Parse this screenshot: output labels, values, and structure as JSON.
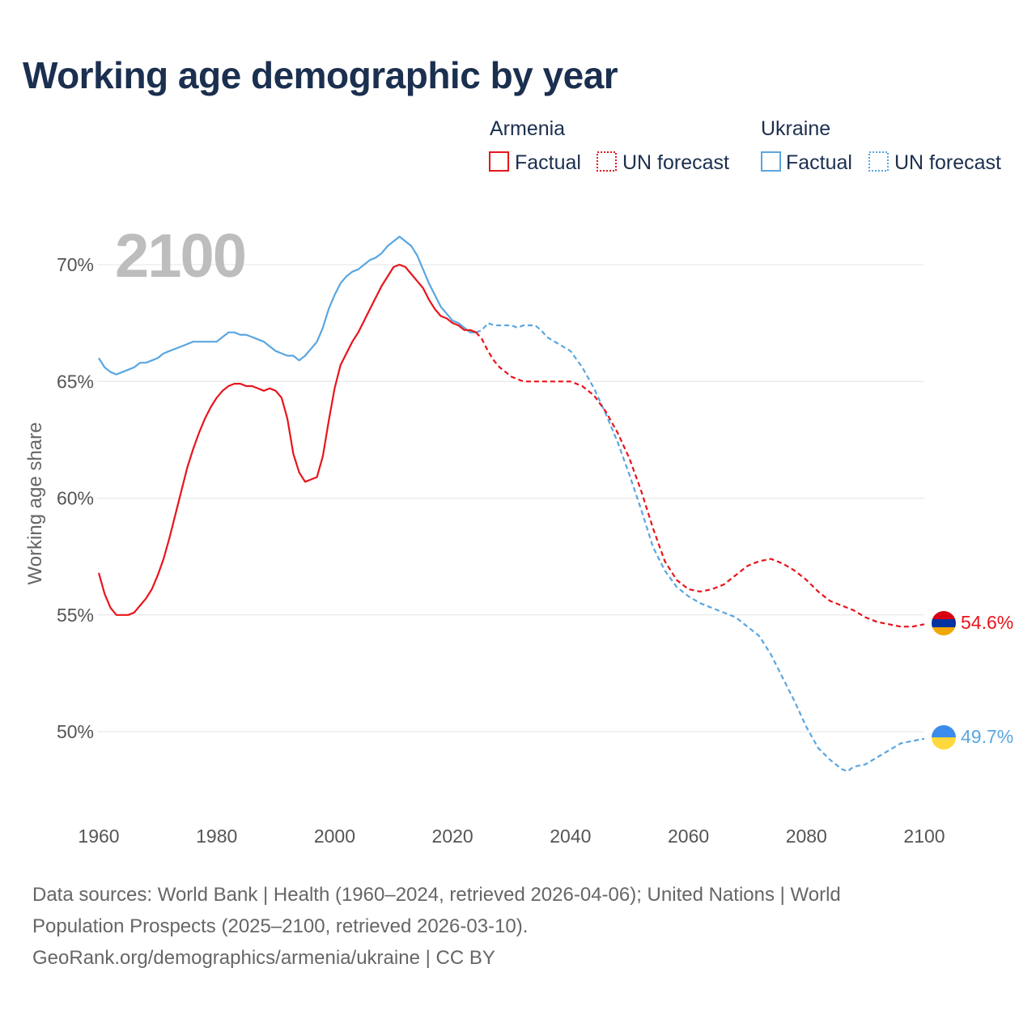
{
  "title": "Working age demographic by year",
  "chart_data": {
    "type": "line",
    "title": "Working age demographic by year",
    "ylabel": "Working age share",
    "xlabel": "",
    "xlim": [
      1960,
      2100
    ],
    "ylim": [
      46.5,
      72
    ],
    "x_ticks": [
      1960,
      1980,
      2000,
      2020,
      2040,
      2060,
      2080,
      2100
    ],
    "y_ticks": [
      50,
      55,
      60,
      65,
      70
    ],
    "y_tick_labels": [
      "50%",
      "55%",
      "60%",
      "65%",
      "70%"
    ],
    "year_label": "2100",
    "legend": {
      "groups": [
        {
          "name": "Armenia",
          "factual_label": "Factual",
          "forecast_label": "UN forecast",
          "color": "#e8141b"
        },
        {
          "name": "Ukraine",
          "factual_label": "Factual",
          "forecast_label": "UN forecast",
          "color": "#5aa6e0"
        }
      ]
    },
    "series": [
      {
        "name": "Armenia",
        "color": "#e8141b",
        "end_label": "54.6%",
        "factual": [
          [
            1960,
            56.8
          ],
          [
            1961,
            55.9
          ],
          [
            1962,
            55.3
          ],
          [
            1963,
            55.0
          ],
          [
            1964,
            55.0
          ],
          [
            1965,
            55.0
          ],
          [
            1966,
            55.1
          ],
          [
            1967,
            55.4
          ],
          [
            1968,
            55.7
          ],
          [
            1969,
            56.1
          ],
          [
            1970,
            56.7
          ],
          [
            1971,
            57.4
          ],
          [
            1972,
            58.3
          ],
          [
            1973,
            59.3
          ],
          [
            1974,
            60.3
          ],
          [
            1975,
            61.3
          ],
          [
            1976,
            62.1
          ],
          [
            1977,
            62.8
          ],
          [
            1978,
            63.4
          ],
          [
            1979,
            63.9
          ],
          [
            1980,
            64.3
          ],
          [
            1981,
            64.6
          ],
          [
            1982,
            64.8
          ],
          [
            1983,
            64.9
          ],
          [
            1984,
            64.9
          ],
          [
            1985,
            64.8
          ],
          [
            1986,
            64.8
          ],
          [
            1987,
            64.7
          ],
          [
            1988,
            64.6
          ],
          [
            1989,
            64.7
          ],
          [
            1990,
            64.6
          ],
          [
            1991,
            64.3
          ],
          [
            1992,
            63.4
          ],
          [
            1993,
            61.9
          ],
          [
            1994,
            61.1
          ],
          [
            1995,
            60.7
          ],
          [
            1996,
            60.8
          ],
          [
            1997,
            60.9
          ],
          [
            1998,
            61.8
          ],
          [
            1999,
            63.3
          ],
          [
            2000,
            64.7
          ],
          [
            2001,
            65.7
          ],
          [
            2002,
            66.2
          ],
          [
            2003,
            66.7
          ],
          [
            2004,
            67.1
          ],
          [
            2005,
            67.6
          ],
          [
            2006,
            68.1
          ],
          [
            2007,
            68.6
          ],
          [
            2008,
            69.1
          ],
          [
            2009,
            69.5
          ],
          [
            2010,
            69.9
          ],
          [
            2011,
            70.0
          ],
          [
            2012,
            69.9
          ],
          [
            2013,
            69.6
          ],
          [
            2014,
            69.3
          ],
          [
            2015,
            69.0
          ],
          [
            2016,
            68.5
          ],
          [
            2017,
            68.1
          ],
          [
            2018,
            67.8
          ],
          [
            2019,
            67.7
          ],
          [
            2020,
            67.5
          ],
          [
            2021,
            67.4
          ],
          [
            2022,
            67.2
          ],
          [
            2023,
            67.2
          ],
          [
            2024,
            67.1
          ]
        ],
        "forecast": [
          [
            2024,
            67.1
          ],
          [
            2025,
            66.8
          ],
          [
            2026,
            66.3
          ],
          [
            2027,
            65.9
          ],
          [
            2028,
            65.6
          ],
          [
            2029,
            65.4
          ],
          [
            2030,
            65.2
          ],
          [
            2032,
            65.0
          ],
          [
            2035,
            65.0
          ],
          [
            2038,
            65.0
          ],
          [
            2040,
            65.0
          ],
          [
            2042,
            64.8
          ],
          [
            2044,
            64.4
          ],
          [
            2046,
            63.7
          ],
          [
            2048,
            62.8
          ],
          [
            2050,
            61.7
          ],
          [
            2052,
            60.3
          ],
          [
            2054,
            58.7
          ],
          [
            2056,
            57.3
          ],
          [
            2058,
            56.5
          ],
          [
            2060,
            56.1
          ],
          [
            2062,
            56.0
          ],
          [
            2064,
            56.1
          ],
          [
            2066,
            56.3
          ],
          [
            2068,
            56.7
          ],
          [
            2070,
            57.1
          ],
          [
            2072,
            57.3
          ],
          [
            2074,
            57.4
          ],
          [
            2076,
            57.2
          ],
          [
            2078,
            56.9
          ],
          [
            2080,
            56.5
          ],
          [
            2082,
            56.0
          ],
          [
            2084,
            55.6
          ],
          [
            2086,
            55.4
          ],
          [
            2088,
            55.2
          ],
          [
            2090,
            54.9
          ],
          [
            2092,
            54.7
          ],
          [
            2094,
            54.6
          ],
          [
            2096,
            54.5
          ],
          [
            2098,
            54.5
          ],
          [
            2100,
            54.6
          ]
        ]
      },
      {
        "name": "Ukraine",
        "color": "#5aa6e0",
        "end_label": "49.7%",
        "factual": [
          [
            1960,
            66.0
          ],
          [
            1961,
            65.6
          ],
          [
            1962,
            65.4
          ],
          [
            1963,
            65.3
          ],
          [
            1964,
            65.4
          ],
          [
            1965,
            65.5
          ],
          [
            1966,
            65.6
          ],
          [
            1967,
            65.8
          ],
          [
            1968,
            65.8
          ],
          [
            1969,
            65.9
          ],
          [
            1970,
            66.0
          ],
          [
            1971,
            66.2
          ],
          [
            1972,
            66.3
          ],
          [
            1973,
            66.4
          ],
          [
            1974,
            66.5
          ],
          [
            1975,
            66.6
          ],
          [
            1976,
            66.7
          ],
          [
            1977,
            66.7
          ],
          [
            1978,
            66.7
          ],
          [
            1979,
            66.7
          ],
          [
            1980,
            66.7
          ],
          [
            1981,
            66.9
          ],
          [
            1982,
            67.1
          ],
          [
            1983,
            67.1
          ],
          [
            1984,
            67.0
          ],
          [
            1985,
            67.0
          ],
          [
            1986,
            66.9
          ],
          [
            1987,
            66.8
          ],
          [
            1988,
            66.7
          ],
          [
            1989,
            66.5
          ],
          [
            1990,
            66.3
          ],
          [
            1991,
            66.2
          ],
          [
            1992,
            66.1
          ],
          [
            1993,
            66.1
          ],
          [
            1994,
            65.9
          ],
          [
            1995,
            66.1
          ],
          [
            1996,
            66.4
          ],
          [
            1997,
            66.7
          ],
          [
            1998,
            67.3
          ],
          [
            1999,
            68.1
          ],
          [
            2000,
            68.7
          ],
          [
            2001,
            69.2
          ],
          [
            2002,
            69.5
          ],
          [
            2003,
            69.7
          ],
          [
            2004,
            69.8
          ],
          [
            2005,
            70.0
          ],
          [
            2006,
            70.2
          ],
          [
            2007,
            70.3
          ],
          [
            2008,
            70.5
          ],
          [
            2009,
            70.8
          ],
          [
            2010,
            71.0
          ],
          [
            2011,
            71.2
          ],
          [
            2012,
            71.0
          ],
          [
            2013,
            70.8
          ],
          [
            2014,
            70.4
          ],
          [
            2015,
            69.8
          ],
          [
            2016,
            69.2
          ],
          [
            2017,
            68.7
          ],
          [
            2018,
            68.2
          ],
          [
            2019,
            67.9
          ],
          [
            2020,
            67.6
          ],
          [
            2021,
            67.5
          ],
          [
            2022,
            67.3
          ],
          [
            2023,
            67.1
          ],
          [
            2024,
            67.1
          ]
        ],
        "forecast": [
          [
            2024,
            67.1
          ],
          [
            2025,
            67.2
          ],
          [
            2026,
            67.5
          ],
          [
            2027,
            67.4
          ],
          [
            2028,
            67.4
          ],
          [
            2030,
            67.4
          ],
          [
            2031,
            67.3
          ],
          [
            2032,
            67.4
          ],
          [
            2034,
            67.4
          ],
          [
            2035,
            67.2
          ],
          [
            2036,
            66.9
          ],
          [
            2038,
            66.6
          ],
          [
            2040,
            66.3
          ],
          [
            2042,
            65.6
          ],
          [
            2044,
            64.7
          ],
          [
            2046,
            63.6
          ],
          [
            2048,
            62.4
          ],
          [
            2050,
            61.0
          ],
          [
            2052,
            59.5
          ],
          [
            2054,
            57.9
          ],
          [
            2056,
            56.9
          ],
          [
            2058,
            56.2
          ],
          [
            2060,
            55.8
          ],
          [
            2062,
            55.5
          ],
          [
            2064,
            55.3
          ],
          [
            2066,
            55.1
          ],
          [
            2068,
            54.9
          ],
          [
            2070,
            54.5
          ],
          [
            2072,
            54.1
          ],
          [
            2074,
            53.3
          ],
          [
            2076,
            52.3
          ],
          [
            2078,
            51.3
          ],
          [
            2080,
            50.2
          ],
          [
            2082,
            49.3
          ],
          [
            2084,
            48.8
          ],
          [
            2086,
            48.4
          ],
          [
            2087,
            48.3
          ],
          [
            2088,
            48.5
          ],
          [
            2090,
            48.6
          ],
          [
            2092,
            48.9
          ],
          [
            2094,
            49.2
          ],
          [
            2096,
            49.5
          ],
          [
            2098,
            49.6
          ],
          [
            2100,
            49.7
          ]
        ]
      }
    ]
  },
  "sources": {
    "line1": "Data sources: World Bank | Health (1960–2024, retrieved 2026-04-06); United Nations | World",
    "line2": "Population Prospects (2025–2100, retrieved 2026-03-10).",
    "line3": "GeoRank.org/demographics/armenia/ukraine | CC BY"
  }
}
